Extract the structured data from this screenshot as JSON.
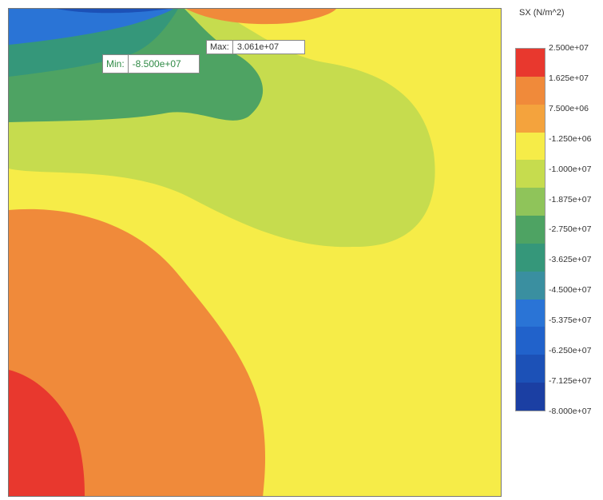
{
  "chart_data": {
    "type": "heatmap",
    "title": "",
    "quantity_label": "SX (N/m^2)",
    "legend_placement": "right",
    "colormap": [
      "#e8382e",
      "#f08a3a",
      "#f4a33d",
      "#f6ec48",
      "#c6dc4e",
      "#8fc45a",
      "#4ea363",
      "#35977a",
      "#3a8fa0",
      "#2a74d6",
      "#2162cb",
      "#1c51b7",
      "#1b3fa3"
    ],
    "legend_ticks": [
      "2.500e+07",
      "1.625e+07",
      "7.500e+06",
      "-1.250e+06",
      "-1.000e+07",
      "-1.875e+07",
      "-2.750e+07",
      "-3.625e+07",
      "-4.500e+07",
      "-5.375e+07",
      "-6.250e+07",
      "-7.125e+07",
      "-8.000e+07"
    ],
    "probes": {
      "min": {
        "label": "Min:",
        "value": "-8.500e+07"
      },
      "max": {
        "label": "Max:",
        "value": "3.061e+07"
      }
    }
  }
}
